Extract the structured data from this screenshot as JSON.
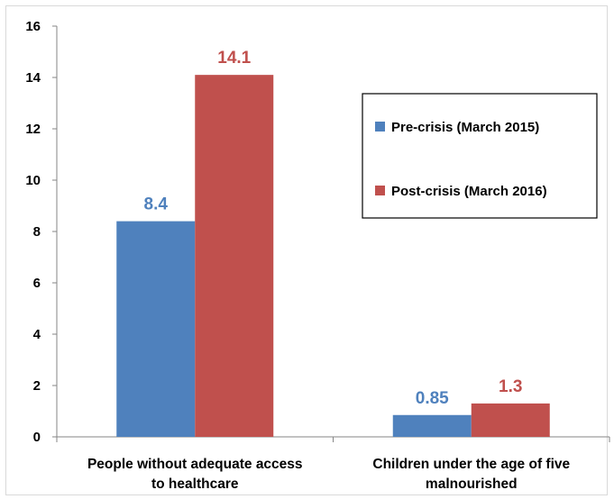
{
  "chart_data": {
    "type": "bar",
    "categories": [
      "People without adequate access to healthcare",
      "Children under the age of five malnourished"
    ],
    "category_lines": [
      [
        "People without adequate access",
        "to healthcare"
      ],
      [
        "Children under the age of five",
        "malnourished"
      ]
    ],
    "series": [
      {
        "name": "Pre-crisis (March 2015)",
        "values": [
          8.4,
          0.85
        ],
        "labels": [
          "8.4",
          "0.85"
        ],
        "color": "#4f81bd"
      },
      {
        "name": "Post-crisis (March 2016)",
        "values": [
          14.1,
          1.3
        ],
        "labels": [
          "14.1",
          "1.3"
        ],
        "color": "#c0504d"
      }
    ],
    "ylim": [
      0,
      16
    ],
    "yticks": [
      0,
      2,
      4,
      6,
      8,
      10,
      12,
      14,
      16
    ],
    "grid": false,
    "legend_position": "top-right"
  }
}
